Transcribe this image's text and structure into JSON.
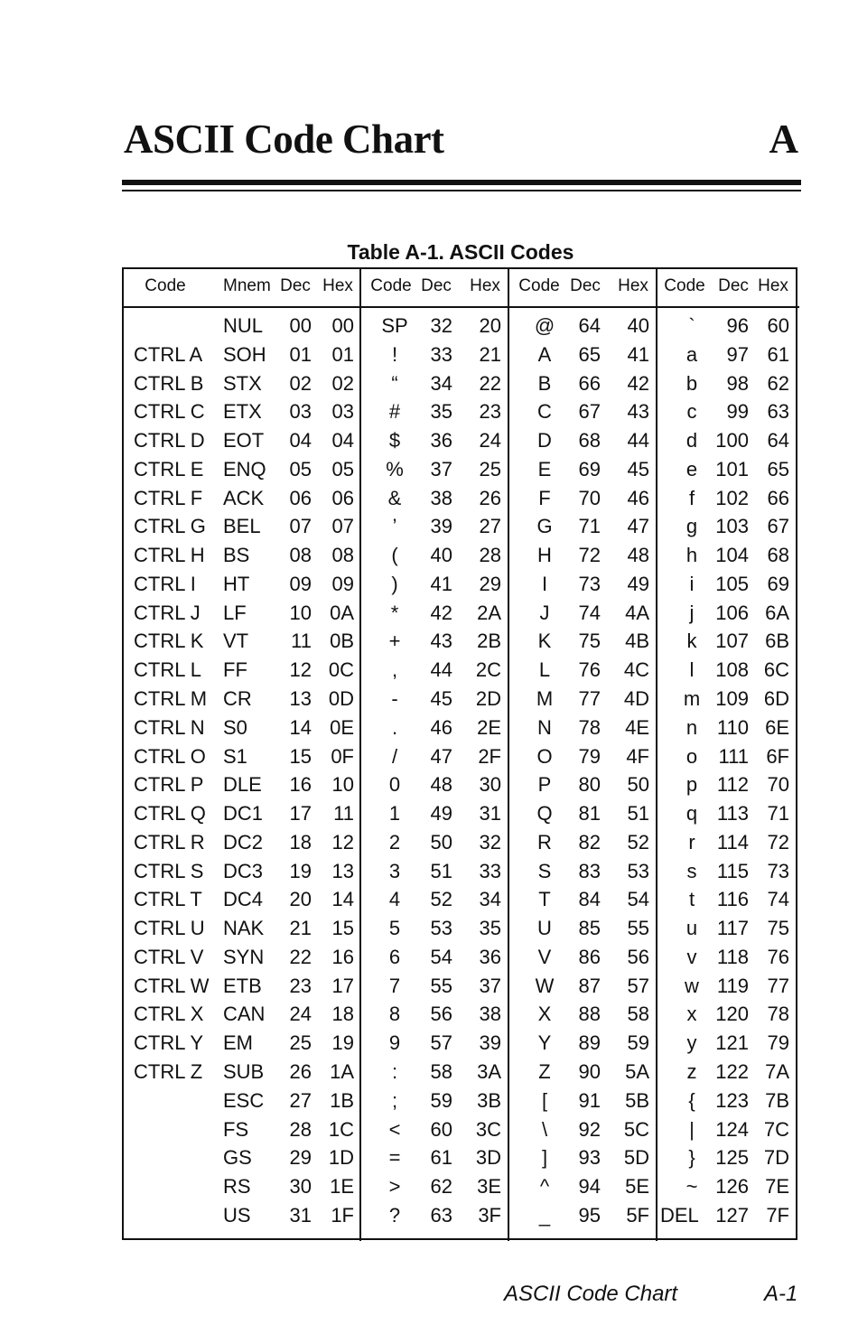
{
  "header": {
    "title": "ASCII Code Chart",
    "appendix_letter": "A"
  },
  "table": {
    "caption": "Table A-1. ASCII Codes",
    "columns": [
      "Code",
      "Mnem",
      "Dec",
      "Hex",
      "Code",
      "Dec",
      "Hex",
      "Code",
      "Dec",
      "Hex",
      "Code",
      "Dec",
      "Hex"
    ],
    "rows": [
      [
        "",
        "NUL",
        "00",
        "00",
        "SP",
        "32",
        "20",
        "@",
        "64",
        "40",
        "`",
        "96",
        "60"
      ],
      [
        "CTRL A",
        "SOH",
        "01",
        "01",
        "!",
        "33",
        "21",
        "A",
        "65",
        "41",
        "a",
        "97",
        "61"
      ],
      [
        "CTRL B",
        "STX",
        "02",
        "02",
        "“",
        "34",
        "22",
        "B",
        "66",
        "42",
        "b",
        "98",
        "62"
      ],
      [
        "CTRL C",
        "ETX",
        "03",
        "03",
        "#",
        "35",
        "23",
        "C",
        "67",
        "43",
        "c",
        "99",
        "63"
      ],
      [
        "CTRL D",
        "EOT",
        "04",
        "04",
        "$",
        "36",
        "24",
        "D",
        "68",
        "44",
        "d",
        "100",
        "64"
      ],
      [
        "CTRL E",
        "ENQ",
        "05",
        "05",
        "%",
        "37",
        "25",
        "E",
        "69",
        "45",
        "e",
        "101",
        "65"
      ],
      [
        "CTRL F",
        "ACK",
        "06",
        "06",
        "&",
        "38",
        "26",
        "F",
        "70",
        "46",
        "f",
        "102",
        "66"
      ],
      [
        "CTRL G",
        "BEL",
        "07",
        "07",
        "’",
        "39",
        "27",
        "G",
        "71",
        "47",
        "g",
        "103",
        "67"
      ],
      [
        "CTRL H",
        "BS",
        "08",
        "08",
        "(",
        "40",
        "28",
        "H",
        "72",
        "48",
        "h",
        "104",
        "68"
      ],
      [
        "CTRL I",
        "HT",
        "09",
        "09",
        ")",
        "41",
        "29",
        "I",
        "73",
        "49",
        "i",
        "105",
        "69"
      ],
      [
        "CTRL J",
        "LF",
        "10",
        "0A",
        "*",
        "42",
        "2A",
        "J",
        "74",
        "4A",
        "j",
        "106",
        "6A"
      ],
      [
        "CTRL K",
        "VT",
        "11",
        "0B",
        "+",
        "43",
        "2B",
        "K",
        "75",
        "4B",
        "k",
        "107",
        "6B"
      ],
      [
        "CTRL L",
        "FF",
        "12",
        "0C",
        ",",
        "44",
        "2C",
        "L",
        "76",
        "4C",
        "l",
        "108",
        "6C"
      ],
      [
        "CTRL M",
        "CR",
        "13",
        "0D",
        "-",
        "45",
        "2D",
        "M",
        "77",
        "4D",
        "m",
        "109",
        "6D"
      ],
      [
        "CTRL N",
        "S0",
        "14",
        "0E",
        ".",
        "46",
        "2E",
        "N",
        "78",
        "4E",
        "n",
        "110",
        "6E"
      ],
      [
        "CTRL O",
        "S1",
        "15",
        "0F",
        "/",
        "47",
        "2F",
        "O",
        "79",
        "4F",
        "o",
        "111",
        "6F"
      ],
      [
        "CTRL P",
        "DLE",
        "16",
        "10",
        "0",
        "48",
        "30",
        "P",
        "80",
        "50",
        "p",
        "112",
        "70"
      ],
      [
        "CTRL Q",
        "DC1",
        "17",
        "11",
        "1",
        "49",
        "31",
        "Q",
        "81",
        "51",
        "q",
        "113",
        "71"
      ],
      [
        "CTRL R",
        "DC2",
        "18",
        "12",
        "2",
        "50",
        "32",
        "R",
        "82",
        "52",
        "r",
        "114",
        "72"
      ],
      [
        "CTRL S",
        "DC3",
        "19",
        "13",
        "3",
        "51",
        "33",
        "S",
        "83",
        "53",
        "s",
        "115",
        "73"
      ],
      [
        "CTRL T",
        "DC4",
        "20",
        "14",
        "4",
        "52",
        "34",
        "T",
        "84",
        "54",
        "t",
        "116",
        "74"
      ],
      [
        "CTRL U",
        "NAK",
        "21",
        "15",
        "5",
        "53",
        "35",
        "U",
        "85",
        "55",
        "u",
        "117",
        "75"
      ],
      [
        "CTRL V",
        "SYN",
        "22",
        "16",
        "6",
        "54",
        "36",
        "V",
        "86",
        "56",
        "v",
        "118",
        "76"
      ],
      [
        "CTRL W",
        "ETB",
        "23",
        "17",
        "7",
        "55",
        "37",
        "W",
        "87",
        "57",
        "w",
        "119",
        "77"
      ],
      [
        "CTRL X",
        "CAN",
        "24",
        "18",
        "8",
        "56",
        "38",
        "X",
        "88",
        "58",
        "x",
        "120",
        "78"
      ],
      [
        "CTRL Y",
        "EM",
        "25",
        "19",
        "9",
        "57",
        "39",
        "Y",
        "89",
        "59",
        "y",
        "121",
        "79"
      ],
      [
        "CTRL Z",
        "SUB",
        "26",
        "1A",
        ":",
        "58",
        "3A",
        "Z",
        "90",
        "5A",
        "z",
        "122",
        "7A"
      ],
      [
        "",
        "ESC",
        "27",
        "1B",
        ";",
        "59",
        "3B",
        "[",
        "91",
        "5B",
        "{",
        "123",
        "7B"
      ],
      [
        "",
        "FS",
        "28",
        "1C",
        "<",
        "60",
        "3C",
        "\\",
        "92",
        "5C",
        "|",
        "124",
        "7C"
      ],
      [
        "",
        "GS",
        "29",
        "1D",
        "=",
        "61",
        "3D",
        "]",
        "93",
        "5D",
        "}",
        "125",
        "7D"
      ],
      [
        "",
        "RS",
        "30",
        "1E",
        ">",
        "62",
        "3E",
        "^",
        "94",
        "5E",
        "~",
        "126",
        "7E"
      ],
      [
        "",
        "US",
        "31",
        "1F",
        "?",
        "63",
        "3F",
        "_",
        "95",
        "5F",
        "DEL",
        "127",
        "7F"
      ]
    ]
  },
  "footer": {
    "section_title": "ASCII Code Chart",
    "page_number": "A-1"
  }
}
